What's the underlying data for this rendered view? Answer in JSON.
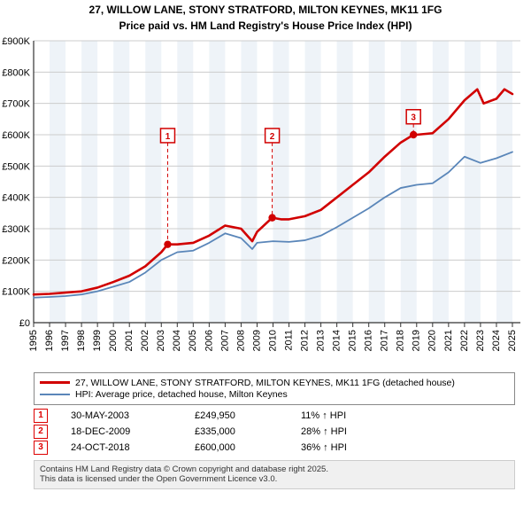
{
  "title_line1": "27, WILLOW LANE, STONY STRATFORD, MILTON KEYNES, MK11 1FG",
  "title_line2": "Price paid vs. HM Land Registry's House Price Index (HPI)",
  "chart": {
    "type": "line",
    "background_color": "#ffffff",
    "band_color": "#eef3f8",
    "grid_color": "#cccccc",
    "axis_color": "#333333",
    "tick_fontsize": 11,
    "x_years": [
      1995,
      1996,
      1997,
      1998,
      1999,
      2000,
      2001,
      2002,
      2003,
      2004,
      2005,
      2006,
      2007,
      2008,
      2009,
      2010,
      2011,
      2012,
      2013,
      2014,
      2015,
      2016,
      2017,
      2018,
      2019,
      2020,
      2021,
      2022,
      2023,
      2024,
      2025
    ],
    "y_ticks": [
      0,
      100,
      200,
      300,
      400,
      500,
      600,
      700,
      800,
      900
    ],
    "y_label_prefix": "£",
    "y_label_suffix": "K",
    "y_label_zero": "£0",
    "ylim": [
      0,
      900
    ],
    "xlim": [
      1995,
      2025.5
    ],
    "series": [
      {
        "name": "property",
        "color": "#d10000",
        "width": 2.6,
        "data": [
          [
            1995,
            90
          ],
          [
            1996,
            92
          ],
          [
            1997,
            96
          ],
          [
            1998,
            100
          ],
          [
            1999,
            112
          ],
          [
            2000,
            130
          ],
          [
            2001,
            150
          ],
          [
            2002,
            180
          ],
          [
            2003,
            225
          ],
          [
            2003.4,
            250
          ],
          [
            2004,
            250
          ],
          [
            2005,
            255
          ],
          [
            2006,
            278
          ],
          [
            2007,
            310
          ],
          [
            2008,
            300
          ],
          [
            2008.7,
            260
          ],
          [
            2009,
            290
          ],
          [
            2009.95,
            335
          ],
          [
            2010.5,
            330
          ],
          [
            2011,
            330
          ],
          [
            2012,
            340
          ],
          [
            2013,
            360
          ],
          [
            2014,
            400
          ],
          [
            2015,
            440
          ],
          [
            2016,
            480
          ],
          [
            2017,
            530
          ],
          [
            2018,
            575
          ],
          [
            2018.8,
            600
          ],
          [
            2019,
            600
          ],
          [
            2020,
            605
          ],
          [
            2021,
            650
          ],
          [
            2022,
            710
          ],
          [
            2022.8,
            745
          ],
          [
            2023.2,
            700
          ],
          [
            2024,
            715
          ],
          [
            2024.5,
            745
          ],
          [
            2025,
            730
          ]
        ]
      },
      {
        "name": "hpi",
        "color": "#5a86b9",
        "width": 1.8,
        "data": [
          [
            1995,
            80
          ],
          [
            1996,
            82
          ],
          [
            1997,
            85
          ],
          [
            1998,
            90
          ],
          [
            1999,
            100
          ],
          [
            2000,
            115
          ],
          [
            2001,
            130
          ],
          [
            2002,
            160
          ],
          [
            2003,
            200
          ],
          [
            2004,
            225
          ],
          [
            2005,
            230
          ],
          [
            2006,
            255
          ],
          [
            2007,
            285
          ],
          [
            2008,
            270
          ],
          [
            2008.7,
            235
          ],
          [
            2009,
            255
          ],
          [
            2010,
            260
          ],
          [
            2011,
            258
          ],
          [
            2012,
            263
          ],
          [
            2013,
            278
          ],
          [
            2014,
            305
          ],
          [
            2015,
            335
          ],
          [
            2016,
            365
          ],
          [
            2017,
            400
          ],
          [
            2018,
            430
          ],
          [
            2019,
            440
          ],
          [
            2020,
            445
          ],
          [
            2021,
            480
          ],
          [
            2022,
            530
          ],
          [
            2023,
            510
          ],
          [
            2024,
            525
          ],
          [
            2025,
            545
          ]
        ]
      }
    ],
    "markers": [
      {
        "n": 1,
        "x": 2003.4,
        "y": 250,
        "label_y": 620
      },
      {
        "n": 2,
        "x": 2009.95,
        "y": 335,
        "label_y": 620
      },
      {
        "n": 3,
        "x": 2018.8,
        "y": 600,
        "label_y": 680
      }
    ],
    "marker_box_border": "#d10000",
    "marker_text_color": "#d10000",
    "marker_dash": "4,3",
    "marker_dash_color": "#d10000",
    "marker_dot_color": "#d10000"
  },
  "legend": {
    "items": [
      {
        "color": "#d10000",
        "width": 3,
        "label": "27, WILLOW LANE, STONY STRATFORD, MILTON KEYNES, MK11 1FG (detached house)"
      },
      {
        "color": "#5a86b9",
        "width": 2,
        "label": "HPI: Average price, detached house, Milton Keynes"
      }
    ]
  },
  "sales": [
    {
      "n": "1",
      "date": "30-MAY-2003",
      "price": "£249,950",
      "delta": "11% ↑ HPI"
    },
    {
      "n": "2",
      "date": "18-DEC-2009",
      "price": "£335,000",
      "delta": "28% ↑ HPI"
    },
    {
      "n": "3",
      "date": "24-OCT-2018",
      "price": "£600,000",
      "delta": "36% ↑ HPI"
    }
  ],
  "attribution_line1": "Contains HM Land Registry data © Crown copyright and database right 2025.",
  "attribution_line2": "This data is licensed under the Open Government Licence v3.0."
}
